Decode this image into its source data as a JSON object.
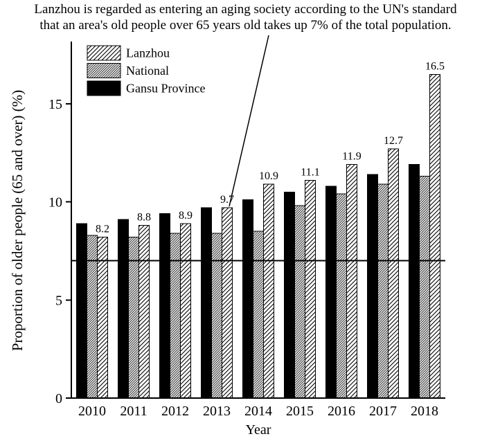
{
  "title": {
    "line1": "Lanzhou is regarded as entering an aging society according to the UN's standard",
    "line2": "that an area's old people over 65 years old takes up 7% of the total population."
  },
  "chart_data": {
    "type": "bar",
    "title": "",
    "xlabel": "Year",
    "ylabel": "Proportion of older people (65 and over) (%)",
    "categories": [
      "2010",
      "2011",
      "2012",
      "2013",
      "2014",
      "2015",
      "2016",
      "2017",
      "2018"
    ],
    "series": [
      {
        "name": "Gansu Province",
        "style": "solid-black",
        "values": [
          8.9,
          9.1,
          9.4,
          9.7,
          10.1,
          10.5,
          10.8,
          11.4,
          11.9
        ]
      },
      {
        "name": "National",
        "style": "hatch-dense",
        "values": [
          8.3,
          8.2,
          8.4,
          8.4,
          8.5,
          9.8,
          10.4,
          10.9,
          11.3
        ]
      },
      {
        "name": "Lanzhou",
        "style": "hatch-wide",
        "values": [
          8.2,
          8.8,
          8.9,
          9.7,
          10.9,
          11.1,
          11.9,
          12.7,
          16.5
        ],
        "labels": [
          "8.2",
          "8.8",
          "8.9",
          "9.7",
          "10.9",
          "11.1",
          "11.9",
          "12.7",
          "16.5"
        ]
      }
    ],
    "legend": [
      {
        "label": "Lanzhou",
        "style": "hatch-wide"
      },
      {
        "label": "National",
        "style": "hatch-dense"
      },
      {
        "label": "Gansu Province",
        "style": "solid-black"
      }
    ],
    "legend_position": "top-left-inside",
    "yticks": [
      "0",
      "5",
      "10",
      "15"
    ],
    "ylim": [
      0,
      18.1
    ],
    "grid": false,
    "reference_line": {
      "value": 7
    },
    "annotation": {
      "series": "Lanzhou",
      "category": "2013",
      "value": 9.7
    }
  },
  "colors": {
    "ink": "#000000",
    "background": "#ffffff"
  }
}
